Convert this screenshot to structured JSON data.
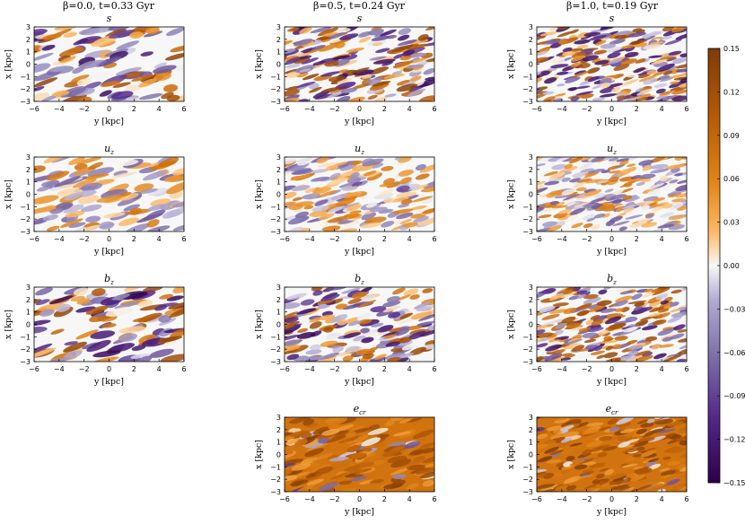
{
  "figure": {
    "columns": [
      {
        "title": "β=0.0,   t=0.33 Gyr"
      },
      {
        "title": "β=0.5,   t=0.24 Gyr"
      },
      {
        "title": "β=1.0,   t=0.19 Gyr"
      }
    ],
    "xlabel": "y [kpc]",
    "ylabel": "x [kpc]",
    "colorbar": {
      "ticks": [
        "0.15",
        "0.12",
        "0.09",
        "0.06",
        "0.03",
        "0.00",
        "−0.03",
        "−0.06",
        "−0.09",
        "−0.12",
        "−0.15"
      ],
      "colors": {
        "min": "#2d004b",
        "mid": "#f7f7f7",
        "max": "#7f3b08"
      }
    }
  },
  "chart_data": [
    {
      "type": "heatmap",
      "panel_label": "s",
      "beta": 0.0,
      "t_gyr": 0.33,
      "x": [
        -6,
        6
      ],
      "y": [
        -3,
        3
      ],
      "x_ticks": [
        "−6",
        "−4",
        "−2",
        "0",
        "2",
        "4",
        "6"
      ],
      "y_ticks": [
        "3",
        "2",
        "1",
        "0",
        "−1",
        "−2",
        "−3"
      ],
      "clim": [
        -0.15,
        0.15
      ]
    },
    {
      "type": "heatmap",
      "panel_label": "s",
      "beta": 0.5,
      "t_gyr": 0.24,
      "x": [
        -6,
        6
      ],
      "y": [
        -3,
        3
      ],
      "x_ticks": [
        "−6",
        "−4",
        "−2",
        "0",
        "2",
        "4",
        "6"
      ],
      "y_ticks": [
        "3",
        "2",
        "1",
        "0",
        "−1",
        "−2",
        "−3"
      ],
      "clim": [
        -0.15,
        0.15
      ]
    },
    {
      "type": "heatmap",
      "panel_label": "s",
      "beta": 1.0,
      "t_gyr": 0.19,
      "x": [
        -6,
        6
      ],
      "y": [
        -3,
        3
      ],
      "x_ticks": [
        "−6",
        "−4",
        "−2",
        "0",
        "2",
        "4",
        "6"
      ],
      "y_ticks": [
        "3",
        "2",
        "1",
        "0",
        "−1",
        "−2",
        "−3"
      ],
      "clim": [
        -0.15,
        0.15
      ]
    },
    {
      "type": "heatmap",
      "panel_label": "u_z",
      "beta": 0.0,
      "t_gyr": 0.33,
      "x": [
        -6,
        6
      ],
      "y": [
        -3,
        3
      ],
      "x_ticks": [
        "−6",
        "−4",
        "−2",
        "0",
        "2",
        "4",
        "6"
      ],
      "y_ticks": [
        "3",
        "2",
        "1",
        "0",
        "−1",
        "−2",
        "−3"
      ],
      "clim": [
        -0.15,
        0.15
      ]
    },
    {
      "type": "heatmap",
      "panel_label": "u_z",
      "beta": 0.5,
      "t_gyr": 0.24,
      "x": [
        -6,
        6
      ],
      "y": [
        -3,
        3
      ],
      "x_ticks": [
        "−6",
        "−4",
        "−2",
        "0",
        "2",
        "4",
        "6"
      ],
      "y_ticks": [
        "3",
        "2",
        "1",
        "0",
        "−1",
        "−2",
        "−3"
      ],
      "clim": [
        -0.15,
        0.15
      ]
    },
    {
      "type": "heatmap",
      "panel_label": "u_z",
      "beta": 1.0,
      "t_gyr": 0.19,
      "x": [
        -6,
        6
      ],
      "y": [
        -3,
        3
      ],
      "x_ticks": [
        "−6",
        "−4",
        "−2",
        "0",
        "2",
        "4",
        "6"
      ],
      "y_ticks": [
        "3",
        "2",
        "1",
        "0",
        "−1",
        "−2",
        "−3"
      ],
      "clim": [
        -0.15,
        0.15
      ]
    },
    {
      "type": "heatmap",
      "panel_label": "b_z",
      "beta": 0.0,
      "t_gyr": 0.33,
      "x": [
        -6,
        6
      ],
      "y": [
        -3,
        3
      ],
      "x_ticks": [
        "−6",
        "−4",
        "−2",
        "0",
        "2",
        "4",
        "6"
      ],
      "y_ticks": [
        "3",
        "2",
        "1",
        "0",
        "−1",
        "−2",
        "−3"
      ],
      "clim": [
        -0.15,
        0.15
      ]
    },
    {
      "type": "heatmap",
      "panel_label": "b_z",
      "beta": 0.5,
      "t_gyr": 0.24,
      "x": [
        -6,
        6
      ],
      "y": [
        -3,
        3
      ],
      "x_ticks": [
        "−6",
        "−4",
        "−2",
        "0",
        "2",
        "4",
        "6"
      ],
      "y_ticks": [
        "3",
        "2",
        "1",
        "0",
        "−1",
        "−2",
        "−3"
      ],
      "clim": [
        -0.15,
        0.15
      ]
    },
    {
      "type": "heatmap",
      "panel_label": "b_z",
      "beta": 1.0,
      "t_gyr": 0.19,
      "x": [
        -6,
        6
      ],
      "y": [
        -3,
        3
      ],
      "x_ticks": [
        "−6",
        "−4",
        "−2",
        "0",
        "2",
        "4",
        "6"
      ],
      "y_ticks": [
        "3",
        "2",
        "1",
        "0",
        "−1",
        "−2",
        "−3"
      ],
      "clim": [
        -0.15,
        0.15
      ]
    },
    {
      "type": "heatmap",
      "panel_label": "e_cr",
      "beta": 0.5,
      "t_gyr": 0.24,
      "x": [
        -6,
        6
      ],
      "y": [
        -3,
        3
      ],
      "x_ticks": [
        "−6",
        "−4",
        "−2",
        "0",
        "2",
        "4",
        "6"
      ],
      "y_ticks": [
        "3",
        "2",
        "1",
        "0",
        "−1",
        "−2",
        "−3"
      ],
      "clim": [
        -0.15,
        0.15
      ]
    },
    {
      "type": "heatmap",
      "panel_label": "e_cr",
      "beta": 1.0,
      "t_gyr": 0.19,
      "x": [
        -6,
        6
      ],
      "y": [
        -3,
        3
      ],
      "x_ticks": [
        "−6",
        "−4",
        "−2",
        "0",
        "2",
        "4",
        "6"
      ],
      "y_ticks": [
        "3",
        "2",
        "1",
        "0",
        "−1",
        "−2",
        "−3"
      ],
      "clim": [
        -0.15,
        0.15
      ]
    }
  ]
}
